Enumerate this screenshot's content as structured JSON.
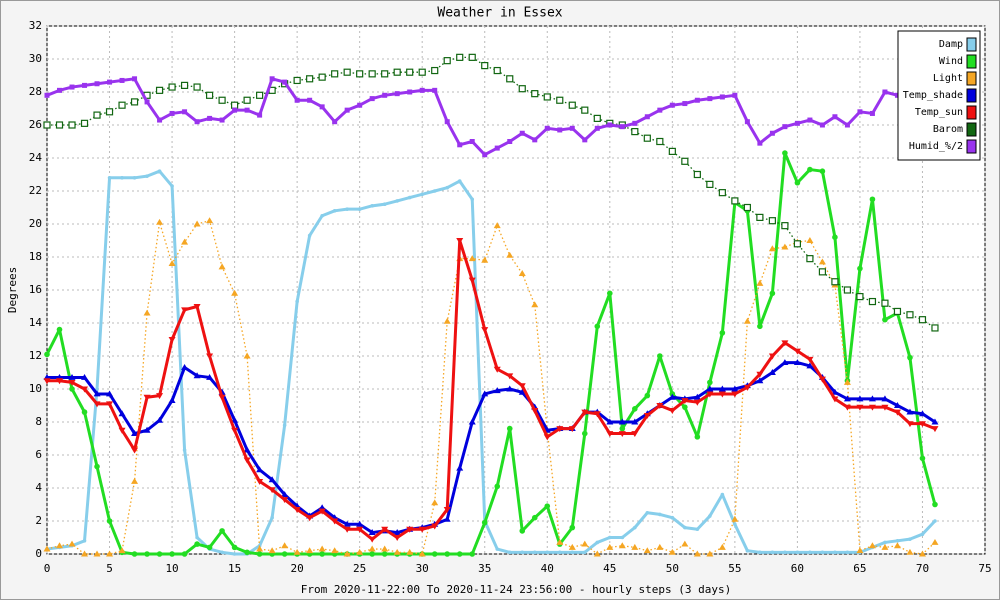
{
  "chart_data": {
    "type": "line",
    "title": "Weather in Essex",
    "x_label": "From 2020-11-22:00 To 2020-11-24 23:56:00 - hourly steps (3 days)",
    "y_label": "Degrees",
    "xlim": [
      0,
      75
    ],
    "xticks": [
      0,
      5,
      10,
      15,
      20,
      25,
      30,
      35,
      40,
      45,
      50,
      55,
      60,
      65,
      70,
      75
    ],
    "ylim": [
      0,
      32
    ],
    "yticks": [
      0,
      2,
      4,
      6,
      8,
      10,
      12,
      14,
      16,
      18,
      20,
      22,
      24,
      26,
      28,
      30,
      32
    ],
    "grid": true,
    "legend": "top-right",
    "x": [
      0,
      1,
      2,
      3,
      4,
      5,
      6,
      7,
      8,
      9,
      10,
      11,
      12,
      13,
      14,
      15,
      16,
      17,
      18,
      19,
      20,
      21,
      22,
      23,
      24,
      25,
      26,
      27,
      28,
      29,
      30,
      31,
      32,
      33,
      34,
      35,
      36,
      37,
      38,
      39,
      40,
      41,
      42,
      43,
      44,
      45,
      46,
      47,
      48,
      49,
      50,
      51,
      52,
      53,
      54,
      55,
      56,
      57,
      58,
      59,
      60,
      61,
      62,
      63,
      64,
      65,
      66,
      67,
      68,
      69,
      70,
      71
    ],
    "series": [
      {
        "name": "Damp",
        "color": "#87ceeb",
        "line_style": "solid",
        "marker": "dot",
        "values": [
          0.3,
          0.4,
          0.5,
          0.8,
          10,
          22.8,
          22.8,
          22.8,
          22.9,
          23.2,
          22.3,
          6.3,
          1,
          0.3,
          0.1,
          0,
          0,
          0.5,
          2.2,
          7.8,
          15.3,
          19.3,
          20.5,
          20.8,
          20.9,
          20.9,
          21.1,
          21.2,
          21.4,
          21.6,
          21.8,
          22,
          22.2,
          22.6,
          21.5,
          2,
          0.3,
          0.1,
          0.1,
          0.1,
          0.1,
          0.1,
          0.1,
          0.1,
          0.7,
          1,
          1,
          1.6,
          2.5,
          2.4,
          2.2,
          1.6,
          1.5,
          2.3,
          3.6,
          1.8,
          0.2,
          0.1,
          0.1,
          0.1,
          0.1,
          0.1,
          0.1,
          0.1,
          0.1,
          0.1,
          0.4,
          0.7,
          0.8,
          0.9,
          1.2,
          2
        ]
      },
      {
        "name": "Wind",
        "color": "#22dd22",
        "line_style": "solid",
        "marker": "circle",
        "values": [
          12.1,
          13.6,
          10,
          8.6,
          5.3,
          2,
          0.1,
          0,
          0,
          0,
          0,
          0,
          0.6,
          0.4,
          1.4,
          0.4,
          0.1,
          0,
          0,
          0,
          0,
          0,
          0,
          0,
          0,
          0,
          0,
          0,
          0,
          0,
          0,
          0,
          0,
          0,
          0,
          1.9,
          4.1,
          7.6,
          1.4,
          2.2,
          2.9,
          0.6,
          1.6,
          7.3,
          13.8,
          15.8,
          7.6,
          8.8,
          9.6,
          12,
          9.7,
          8.9,
          7.1,
          10.4,
          13.4,
          21.3,
          20.8,
          13.8,
          15.8,
          24.3,
          22.5,
          23.3,
          23.2,
          19.2,
          10.5,
          17.3,
          21.5,
          14.2,
          14.6,
          11.9,
          5.8,
          3
        ]
      },
      {
        "name": "Light",
        "color": "#f5a623",
        "line_style": "dotted",
        "marker": "triangle-up",
        "values": [
          0.3,
          0.5,
          0.6,
          0,
          0,
          0,
          0.2,
          4.4,
          14.6,
          20.1,
          17.6,
          18.9,
          20,
          20.2,
          17.4,
          15.8,
          12,
          0.3,
          0.2,
          0.5,
          0.1,
          0.2,
          0.3,
          0.2,
          0,
          0.1,
          0.3,
          0.3,
          0.1,
          0.1,
          0,
          3.1,
          14.1,
          17.9,
          17.9,
          17.8,
          19.9,
          18.1,
          17,
          15.1,
          7.5,
          0.7,
          0.4,
          0.6,
          0,
          0.4,
          0.5,
          0.4,
          0.2,
          0.4,
          0.1,
          0.6,
          0,
          0,
          0.4,
          2.1,
          14.1,
          16.4,
          18.5,
          18.6,
          18.9,
          19,
          17.7,
          16.3,
          10.4,
          0.2,
          0.5,
          0.4,
          0.5,
          0.1,
          0,
          0.7
        ]
      },
      {
        "name": "Temp_shade",
        "color": "#0000dd",
        "line_style": "solid",
        "marker": "triangle-up",
        "values": [
          10.7,
          10.7,
          10.7,
          10.7,
          9.7,
          9.7,
          8.5,
          7.3,
          7.5,
          8.1,
          9.3,
          11.3,
          10.8,
          10.7,
          9.8,
          8.1,
          6.3,
          5.1,
          4.5,
          3.6,
          2.9,
          2.3,
          2.8,
          2.2,
          1.8,
          1.8,
          1.3,
          1.4,
          1.3,
          1.5,
          1.6,
          1.8,
          2.1,
          5.2,
          8,
          9.7,
          9.9,
          10,
          9.8,
          8.9,
          7.5,
          7.6,
          7.6,
          8.6,
          8.6,
          8,
          8,
          8,
          8.5,
          9,
          9.5,
          9.4,
          9.5,
          10,
          10,
          10,
          10.2,
          10.5,
          11,
          11.6,
          11.6,
          11.4,
          10.7,
          9.8,
          9.4,
          9.4,
          9.4,
          9.4,
          9,
          8.6,
          8.5,
          8
        ]
      },
      {
        "name": "Temp_sun",
        "color": "#ee1111",
        "line_style": "solid",
        "marker": "triangle-down",
        "values": [
          10.5,
          10.5,
          10.4,
          10,
          9.1,
          9.1,
          7.5,
          6.3,
          9.5,
          9.6,
          13,
          14.8,
          15,
          12,
          9.5,
          7.5,
          5.7,
          4.4,
          3.9,
          3.3,
          2.7,
          2.2,
          2.6,
          2,
          1.5,
          1.5,
          0.9,
          1.5,
          1,
          1.5,
          1.5,
          1.7,
          2.7,
          19,
          16.6,
          13.6,
          11.2,
          10.8,
          10.2,
          8.7,
          7.1,
          7.6,
          7.6,
          8.6,
          8.5,
          7.3,
          7.3,
          7.3,
          8.4,
          9,
          8.7,
          9.3,
          9.2,
          9.7,
          9.7,
          9.7,
          10.1,
          10.9,
          12,
          12.8,
          12.3,
          11.8,
          10.6,
          9.4,
          8.9,
          8.9,
          8.9,
          8.9,
          8.6,
          7.9,
          7.9,
          7.6
        ]
      },
      {
        "name": "Barom",
        "color": "#116611",
        "line_style": "dotted",
        "marker": "square-open",
        "values": [
          26,
          26,
          26,
          26.1,
          26.6,
          26.8,
          27.2,
          27.4,
          27.8,
          28.1,
          28.3,
          28.4,
          28.3,
          27.8,
          27.5,
          27.2,
          27.5,
          27.8,
          28.1,
          28.5,
          28.7,
          28.8,
          28.9,
          29.1,
          29.2,
          29.1,
          29.1,
          29.1,
          29.2,
          29.2,
          29.2,
          29.3,
          29.9,
          30.1,
          30.1,
          29.6,
          29.3,
          28.8,
          28.2,
          27.9,
          27.7,
          27.5,
          27.2,
          26.9,
          26.4,
          26.1,
          26,
          25.6,
          25.2,
          25,
          24.4,
          23.8,
          23,
          22.4,
          21.9,
          21.4,
          21,
          20.4,
          20.2,
          19.9,
          18.8,
          17.9,
          17.1,
          16.5,
          16,
          15.6,
          15.3,
          15.2,
          14.7,
          14.5,
          14.2,
          13.7
        ]
      },
      {
        "name": "Humid_%/2",
        "color": "#9933ee",
        "line_style": "solid",
        "marker": "square",
        "values": [
          27.8,
          28.1,
          28.3,
          28.4,
          28.5,
          28.6,
          28.7,
          28.8,
          27.4,
          26.3,
          26.7,
          26.8,
          26.2,
          26.4,
          26.3,
          26.9,
          26.9,
          26.6,
          28.8,
          28.6,
          27.5,
          27.5,
          27.1,
          26.2,
          26.9,
          27.2,
          27.6,
          27.8,
          27.9,
          28,
          28.1,
          28.1,
          26.2,
          24.8,
          25,
          24.2,
          24.6,
          25,
          25.5,
          25.1,
          25.8,
          25.7,
          25.8,
          25.1,
          25.8,
          26,
          25.9,
          26.1,
          26.5,
          26.9,
          27.2,
          27.3,
          27.5,
          27.6,
          27.7,
          27.8,
          26.2,
          24.9,
          25.5,
          25.9,
          26.1,
          26.3,
          26,
          26.5,
          26,
          26.8,
          26.7,
          28,
          27.8,
          null,
          null,
          null
        ]
      }
    ]
  }
}
